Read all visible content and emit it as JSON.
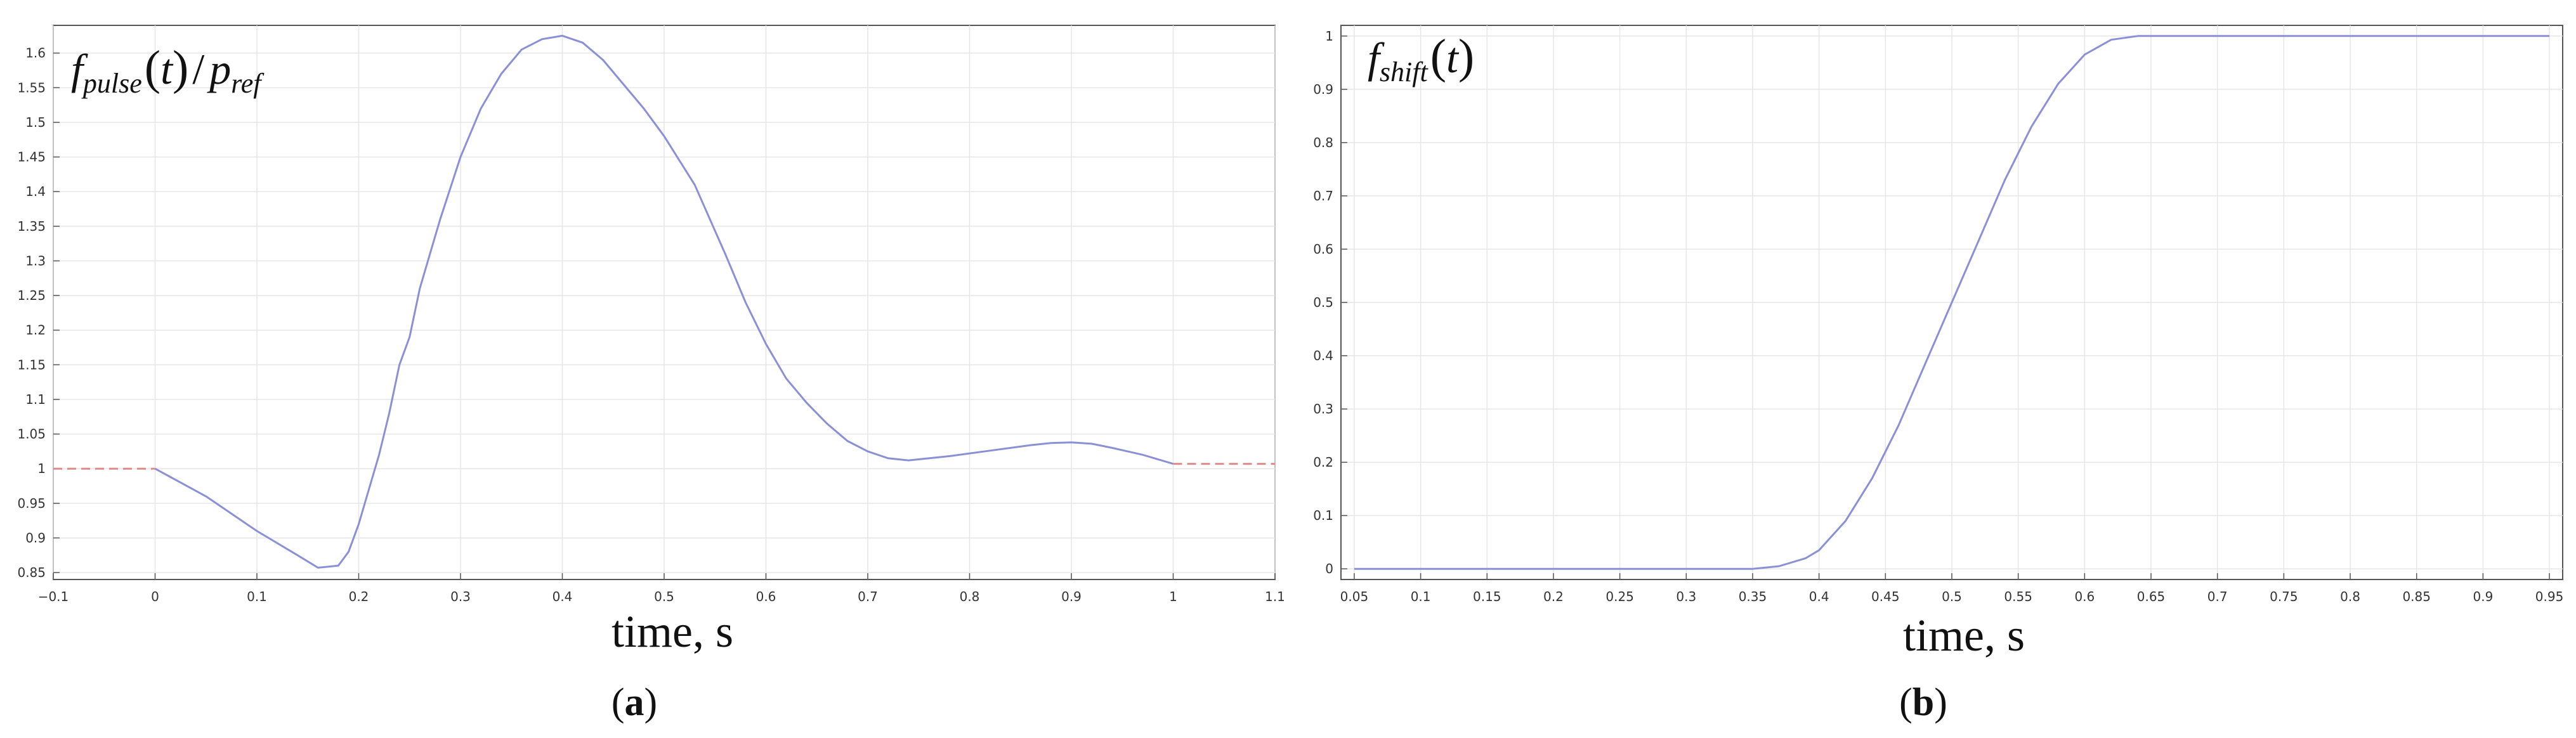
{
  "chart_data": [
    {
      "type": "line",
      "panel_label": "a",
      "ylabel": {
        "f": "f",
        "f_sub": "pulse",
        "arg": "t",
        "slash": "/",
        "p": "p",
        "p_sub": "ref"
      },
      "xlabel": "time, s",
      "xlim": [
        -0.1,
        1.1
      ],
      "ylim": [
        0.84,
        1.64
      ],
      "xticks": [
        -0.1,
        0,
        0.1,
        0.2,
        0.3,
        0.4,
        0.5,
        0.6,
        0.7,
        0.8,
        0.9,
        1,
        1.1
      ],
      "xtick_labels": [
        "−0.1",
        "0",
        "0.1",
        "0.2",
        "0.3",
        "0.4",
        "0.5",
        "0.6",
        "0.7",
        "0.8",
        "0.9",
        "1",
        "1.1"
      ],
      "yticks": [
        0.85,
        0.9,
        0.95,
        1,
        1.05,
        1.1,
        1.15,
        1.2,
        1.25,
        1.3,
        1.35,
        1.4,
        1.45,
        1.5,
        1.55,
        1.6
      ],
      "ytick_labels": [
        "0.85",
        "0.9",
        "0.95",
        "1",
        "1.05",
        "1.1",
        "1.15",
        "1.2",
        "1.25",
        "1.3",
        "1.35",
        "1.4",
        "1.45",
        "1.5",
        "1.55",
        "1.6"
      ],
      "grid": true,
      "series": [
        {
          "style": "solid",
          "color": "#8b90d6",
          "x": [
            0,
            0.05,
            0.1,
            0.14,
            0.16,
            0.18,
            0.19,
            0.2,
            0.21,
            0.22,
            0.23,
            0.24,
            0.25,
            0.26,
            0.27,
            0.28,
            0.3,
            0.32,
            0.34,
            0.36,
            0.38,
            0.4,
            0.42,
            0.44,
            0.46,
            0.48,
            0.5,
            0.53,
            0.56,
            0.58,
            0.6,
            0.62,
            0.64,
            0.66,
            0.68,
            0.7,
            0.72,
            0.74,
            0.78,
            0.82,
            0.86,
            0.88,
            0.9,
            0.92,
            0.94,
            0.97,
            1.0
          ],
          "y": [
            1.0,
            0.96,
            0.91,
            0.875,
            0.857,
            0.86,
            0.88,
            0.92,
            0.97,
            1.02,
            1.08,
            1.15,
            1.19,
            1.26,
            1.31,
            1.36,
            1.45,
            1.52,
            1.57,
            1.605,
            1.62,
            1.625,
            1.615,
            1.59,
            1.555,
            1.52,
            1.48,
            1.41,
            1.31,
            1.24,
            1.18,
            1.13,
            1.095,
            1.065,
            1.04,
            1.025,
            1.015,
            1.012,
            1.018,
            1.026,
            1.034,
            1.037,
            1.038,
            1.036,
            1.03,
            1.02,
            1.007
          ]
        },
        {
          "style": "dashed",
          "color": "#e08a8a",
          "x": [
            -0.1,
            0
          ],
          "y": [
            1.0,
            1.0
          ]
        },
        {
          "style": "dashed",
          "color": "#e08a8a",
          "x": [
            1.0,
            1.1
          ],
          "y": [
            1.007,
            1.007
          ]
        }
      ]
    },
    {
      "type": "line",
      "panel_label": "b",
      "ylabel": {
        "f": "f",
        "f_sub": "shift",
        "arg": "t"
      },
      "xlabel": "time, s",
      "xlim": [
        0.04,
        0.96
      ],
      "ylim": [
        -0.02,
        1.02
      ],
      "xticks": [
        0.05,
        0.1,
        0.15,
        0.2,
        0.25,
        0.3,
        0.35,
        0.4,
        0.45,
        0.5,
        0.55,
        0.6,
        0.65,
        0.7,
        0.75,
        0.8,
        0.85,
        0.9,
        0.95
      ],
      "xtick_labels": [
        "0.05",
        "0.1",
        "0.15",
        "0.2",
        "0.25",
        "0.3",
        "0.35",
        "0.4",
        "0.45",
        "0.5",
        "0.55",
        "0.6",
        "0.65",
        "0.7",
        "0.75",
        "0.8",
        "0.85",
        "0.9",
        "0.95"
      ],
      "yticks": [
        0,
        0.1,
        0.2,
        0.3,
        0.4,
        0.5,
        0.6,
        0.7,
        0.8,
        0.9,
        1
      ],
      "ytick_labels": [
        "0",
        "0.1",
        "0.2",
        "0.3",
        "0.4",
        "0.5",
        "0.6",
        "0.7",
        "0.8",
        "0.9",
        "1"
      ],
      "grid": true,
      "series": [
        {
          "style": "solid",
          "color": "#8b90d6",
          "x": [
            0.05,
            0.1,
            0.2,
            0.3,
            0.35,
            0.37,
            0.39,
            0.4,
            0.42,
            0.44,
            0.46,
            0.48,
            0.5,
            0.52,
            0.54,
            0.56,
            0.58,
            0.6,
            0.62,
            0.64,
            0.7,
            0.8,
            0.9,
            0.95
          ],
          "y": [
            0,
            0,
            0,
            0,
            0,
            0.005,
            0.02,
            0.035,
            0.09,
            0.17,
            0.27,
            0.385,
            0.5,
            0.615,
            0.73,
            0.83,
            0.91,
            0.965,
            0.993,
            1.0,
            1.0,
            1.0,
            1.0,
            1.0
          ]
        }
      ]
    }
  ]
}
